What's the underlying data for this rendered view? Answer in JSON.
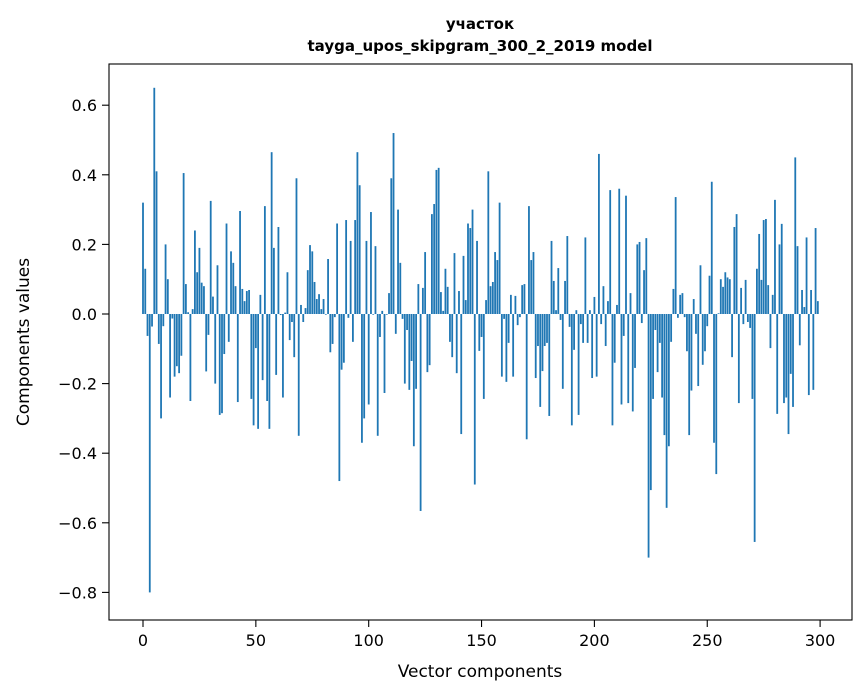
{
  "chart_data": {
    "type": "bar",
    "title": "участок",
    "subtitle": "tayga_upos_skipgram_300_2_2019 model",
    "xlabel": "Vector components",
    "ylabel": "Components values",
    "xlim": [
      -15,
      315
    ],
    "ylim": [
      -0.87,
      0.71
    ],
    "xticks": [
      0,
      50,
      100,
      150,
      200,
      250,
      300
    ],
    "yticks": [
      0.6,
      0.4,
      0.2,
      0.0,
      -0.2,
      -0.4,
      -0.6,
      -0.8
    ],
    "ytick_labels": [
      "0.6",
      "0.4",
      "0.2",
      "0.0",
      "−0.2",
      "−0.4",
      "−0.6",
      "−0.8"
    ],
    "xtick_labels": [
      "0",
      "50",
      "100",
      "150",
      "200",
      "250",
      "300"
    ],
    "grid": false,
    "color": "#1f77b4",
    "values": [
      0.32,
      0.13,
      -0.063,
      -0.8,
      -0.036,
      0.65,
      0.41,
      -0.086,
      -0.3,
      -0.035,
      0.2,
      0.1,
      -0.24,
      -0.013,
      -0.18,
      -0.15,
      -0.17,
      -0.12,
      0.405,
      0.086,
      0.005,
      -0.25,
      0.014,
      0.24,
      0.12,
      0.19,
      0.09,
      0.08,
      -0.165,
      -0.06,
      0.325,
      0.05,
      -0.2,
      0.14,
      -0.29,
      -0.285,
      -0.115,
      0.26,
      -0.08,
      0.18,
      0.147,
      0.08,
      -0.253,
      0.296,
      0.072,
      0.037,
      0.066,
      0.069,
      -0.244,
      -0.32,
      -0.098,
      -0.33,
      0.055,
      -0.19,
      0.31,
      -0.25,
      -0.33,
      0.465,
      0.19,
      -0.175,
      0.25,
      -0.003,
      -0.24,
      0.004,
      0.12,
      -0.075,
      -0.023,
      -0.124,
      0.39,
      -0.35,
      0.026,
      -0.023,
      0.017,
      0.126,
      0.198,
      0.18,
      0.092,
      0.043,
      0.057,
      0.014,
      0.043,
      -0.002,
      0.158,
      -0.11,
      -0.086,
      -0.009,
      0.26,
      -0.48,
      -0.16,
      -0.14,
      0.27,
      -0.011,
      0.21,
      -0.08,
      0.27,
      0.465,
      0.37,
      -0.37,
      -0.3,
      0.21,
      -0.26,
      0.293,
      -0.002,
      0.195,
      -0.35,
      -0.066,
      0.009,
      -0.227,
      -0.002,
      0.06,
      0.39,
      0.52,
      -0.057,
      0.3,
      0.147,
      -0.014,
      -0.2,
      -0.046,
      -0.218,
      -0.135,
      -0.38,
      -0.215,
      0.086,
      -0.566,
      0.075,
      0.178,
      -0.167,
      -0.147,
      0.287,
      0.316,
      0.414,
      0.42,
      0.063,
      0.009,
      0.13,
      0.078,
      -0.08,
      -0.124,
      0.175,
      -0.17,
      0.066,
      -0.345,
      0.167,
      0.04,
      0.26,
      0.247,
      0.3,
      -0.49,
      0.21,
      -0.106,
      -0.066,
      -0.244,
      0.04,
      0.41,
      0.08,
      0.092,
      0.178,
      0.155,
      0.32,
      -0.18,
      -0.014,
      -0.195,
      -0.083,
      0.055,
      -0.18,
      0.052,
      -0.032,
      -0.009,
      0.083,
      0.086,
      -0.36,
      0.31,
      0.155,
      0.178,
      -0.184,
      -0.092,
      -0.267,
      -0.164,
      -0.092,
      -0.083,
      -0.293,
      0.21,
      0.095,
      0.011,
      0.132,
      -0.017,
      -0.215,
      0.095,
      0.224,
      -0.037,
      -0.32,
      -0.103,
      0.011,
      -0.29,
      -0.029,
      -0.083,
      0.22,
      -0.083,
      0.011,
      -0.184,
      0.049,
      -0.18,
      0.46,
      -0.029,
      0.08,
      -0.092,
      0.037,
      0.356,
      -0.32,
      -0.14,
      0.026,
      0.36,
      -0.26,
      -0.063,
      0.34,
      -0.256,
      0.06,
      -0.28,
      -0.155,
      0.2,
      0.207,
      -0.026,
      0.126,
      0.218,
      -0.7,
      -0.506,
      -0.244,
      -0.046,
      -0.167,
      -0.083,
      -0.24,
      -0.348,
      -0.557,
      -0.38,
      -0.08,
      0.072,
      0.336,
      -0.011,
      0.055,
      0.06,
      -0.009,
      -0.107,
      -0.348,
      -0.22,
      0.043,
      -0.057,
      -0.207,
      0.14,
      -0.146,
      -0.107,
      -0.035,
      0.11,
      0.38,
      -0.37,
      -0.46,
      0.002,
      0.1,
      0.078,
      0.12,
      0.105,
      0.1,
      -0.124,
      0.25,
      0.287,
      -0.256,
      0.075,
      -0.029,
      0.098,
      -0.023,
      -0.04,
      -0.244,
      -0.655,
      0.13,
      0.23,
      0.098,
      0.27,
      0.273,
      0.083,
      -0.098,
      0.055,
      0.328,
      -0.287,
      0.2,
      0.259,
      -0.256,
      -0.24,
      -0.345,
      -0.172,
      -0.267,
      0.45,
      0.195,
      -0.09,
      0.069,
      0.02,
      0.22,
      -0.233,
      0.069,
      -0.218,
      0.247,
      0.037
    ]
  }
}
